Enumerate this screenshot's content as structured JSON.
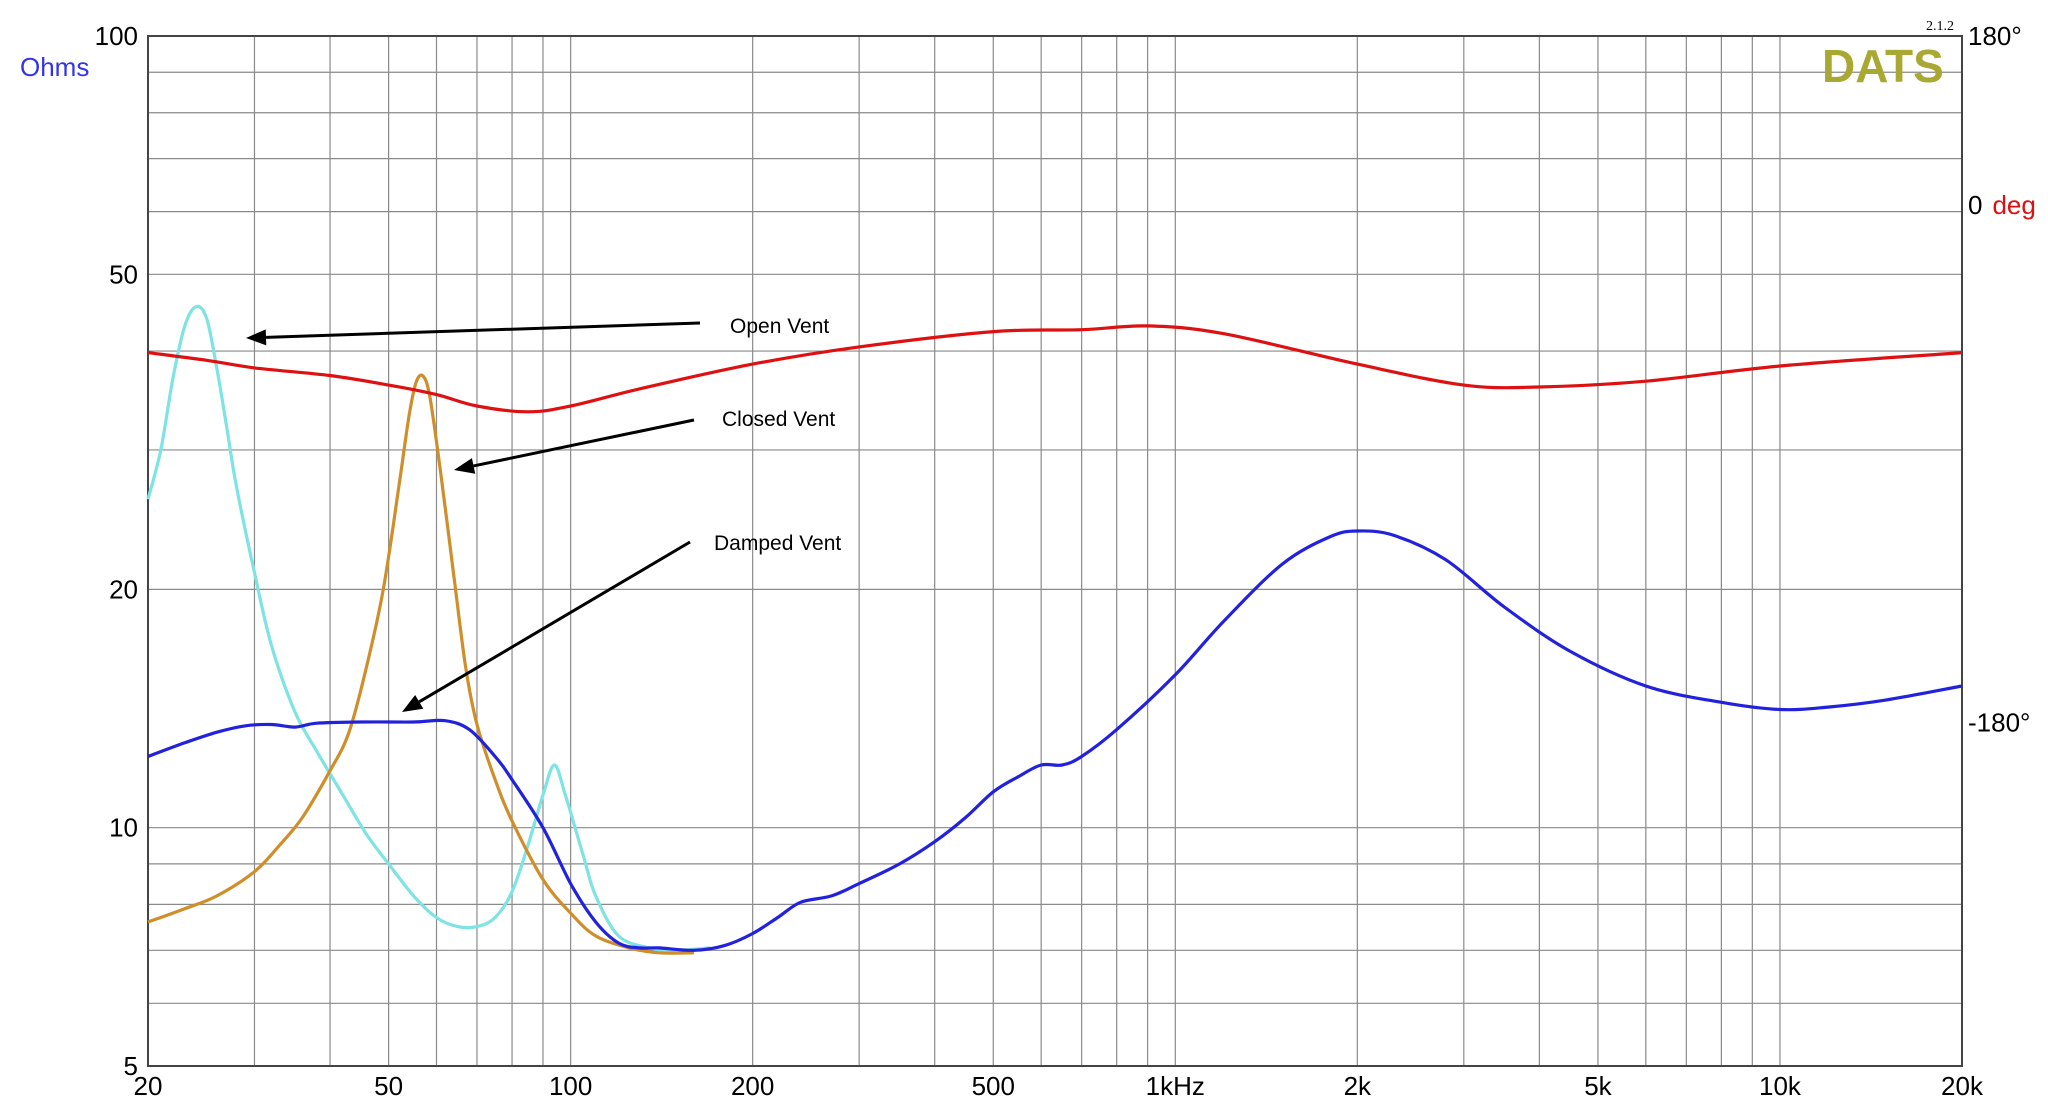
{
  "brand": {
    "name": "DATS",
    "version": "2.1.2",
    "color": "#a8a832"
  },
  "chart_data": {
    "type": "line",
    "xscale": "log",
    "yscale": "log",
    "xlim": [
      20,
      20000
    ],
    "ylim": [
      5,
      100
    ],
    "y2lim": [
      -360,
      180
    ],
    "grid": true,
    "x_ticks": [
      {
        "value": 20,
        "label": "20"
      },
      {
        "value": 50,
        "label": "50"
      },
      {
        "value": 100,
        "label": "100"
      },
      {
        "value": 200,
        "label": "200"
      },
      {
        "value": 500,
        "label": "500"
      },
      {
        "value": 1000,
        "label": "1kHz"
      },
      {
        "value": 2000,
        "label": "2k"
      },
      {
        "value": 5000,
        "label": "5k"
      },
      {
        "value": 10000,
        "label": "10k"
      },
      {
        "value": 20000,
        "label": "20k"
      }
    ],
    "y_ticks": [
      {
        "value": 100,
        "label": "100"
      },
      {
        "value": 50,
        "label": "50"
      },
      {
        "value": 20,
        "label": "20"
      },
      {
        "value": 10,
        "label": "10"
      },
      {
        "value": 5,
        "label": "5"
      }
    ],
    "y2_ticks": [
      {
        "value": 180,
        "label": "180°"
      },
      {
        "value": -180,
        "label": "-180°"
      }
    ],
    "ylabel": "Ohms",
    "ylabel_color": "#3333ee",
    "y2label": {
      "zero": "0",
      "unit": "deg"
    },
    "y2label_color": "#dd1111",
    "series": [
      {
        "color": "#7de3e3",
        "points": [
          [
            20,
            26
          ],
          [
            21,
            30
          ],
          [
            22,
            37
          ],
          [
            23,
            43
          ],
          [
            24,
            45.5
          ],
          [
            25,
            44
          ],
          [
            26,
            38
          ],
          [
            27,
            32
          ],
          [
            28,
            27
          ],
          [
            30,
            21
          ],
          [
            32,
            17
          ],
          [
            35,
            14
          ],
          [
            38,
            12.5
          ],
          [
            42,
            11
          ],
          [
            46,
            9.8
          ],
          [
            50,
            9
          ],
          [
            55,
            8.2
          ],
          [
            60,
            7.7
          ],
          [
            65,
            7.5
          ],
          [
            70,
            7.5
          ],
          [
            75,
            7.7
          ],
          [
            80,
            8.3
          ],
          [
            85,
            9.5
          ],
          [
            90,
            11
          ],
          [
            94,
            12
          ],
          [
            98,
            11
          ],
          [
            105,
            9.2
          ],
          [
            110,
            8.2
          ],
          [
            120,
            7.3
          ],
          [
            135,
            7.05
          ],
          [
            150,
            7.0
          ],
          [
            170,
            7.05
          ]
        ]
      },
      {
        "color": "#d08e2a",
        "points": [
          [
            20,
            7.6
          ],
          [
            23,
            7.9
          ],
          [
            26,
            8.2
          ],
          [
            30,
            8.8
          ],
          [
            33,
            9.5
          ],
          [
            36,
            10.3
          ],
          [
            40,
            11.8
          ],
          [
            43,
            13.2
          ],
          [
            46,
            16
          ],
          [
            49,
            20
          ],
          [
            52,
            27
          ],
          [
            54,
            33
          ],
          [
            55.5,
            36.5
          ],
          [
            57,
            37.2
          ],
          [
            58.5,
            35
          ],
          [
            61,
            28
          ],
          [
            64,
            21
          ],
          [
            67,
            16
          ],
          [
            70,
            13.5
          ],
          [
            75,
            11.5
          ],
          [
            80,
            10.2
          ],
          [
            90,
            8.6
          ],
          [
            100,
            7.8
          ],
          [
            110,
            7.3
          ],
          [
            125,
            7.05
          ],
          [
            140,
            6.95
          ],
          [
            160,
            6.95
          ]
        ]
      },
      {
        "color": "#2222dd",
        "points": [
          [
            20,
            12.3
          ],
          [
            23,
            12.8
          ],
          [
            26,
            13.2
          ],
          [
            29,
            13.45
          ],
          [
            32,
            13.5
          ],
          [
            35,
            13.4
          ],
          [
            38,
            13.55
          ],
          [
            45,
            13.6
          ],
          [
            55,
            13.6
          ],
          [
            62,
            13.65
          ],
          [
            68,
            13.3
          ],
          [
            75,
            12.3
          ],
          [
            80,
            11.5
          ],
          [
            90,
            10
          ],
          [
            100,
            8.5
          ],
          [
            110,
            7.6
          ],
          [
            120,
            7.15
          ],
          [
            130,
            7.05
          ],
          [
            140,
            7.05
          ],
          [
            160,
            7.0
          ],
          [
            180,
            7.1
          ],
          [
            200,
            7.35
          ],
          [
            220,
            7.7
          ],
          [
            240,
            8.05
          ],
          [
            270,
            8.2
          ],
          [
            300,
            8.5
          ],
          [
            350,
            9.0
          ],
          [
            400,
            9.6
          ],
          [
            450,
            10.3
          ],
          [
            500,
            11.1
          ],
          [
            550,
            11.6
          ],
          [
            600,
            12.0
          ],
          [
            650,
            12.0
          ],
          [
            700,
            12.3
          ],
          [
            800,
            13.3
          ],
          [
            1000,
            15.6
          ],
          [
            1200,
            18.2
          ],
          [
            1500,
            21.5
          ],
          [
            1800,
            23.3
          ],
          [
            2000,
            23.7
          ],
          [
            2300,
            23.4
          ],
          [
            2800,
            21.8
          ],
          [
            3500,
            19.0
          ],
          [
            4500,
            16.7
          ],
          [
            6000,
            15.1
          ],
          [
            8000,
            14.4
          ],
          [
            10000,
            14.1
          ],
          [
            12000,
            14.2
          ],
          [
            15000,
            14.5
          ],
          [
            20000,
            15.1
          ]
        ]
      },
      {
        "color": "#dd1111",
        "axis": "phase",
        "points": [
          [
            20,
            14
          ],
          [
            25,
            10
          ],
          [
            30,
            6
          ],
          [
            40,
            2
          ],
          [
            50,
            -3
          ],
          [
            60,
            -8
          ],
          [
            70,
            -14
          ],
          [
            85,
            -17
          ],
          [
            100,
            -14
          ],
          [
            130,
            -5
          ],
          [
            200,
            8
          ],
          [
            300,
            17
          ],
          [
            500,
            25
          ],
          [
            700,
            26
          ],
          [
            900,
            28
          ],
          [
            1200,
            24
          ],
          [
            2000,
            8
          ],
          [
            3000,
            -3
          ],
          [
            4000,
            -4
          ],
          [
            6000,
            -1
          ],
          [
            10000,
            7
          ],
          [
            20000,
            14
          ]
        ]
      }
    ],
    "annotations": [
      {
        "text": "Open Vent"
      },
      {
        "text": "Closed Vent"
      },
      {
        "text": "Damped Vent"
      }
    ]
  }
}
